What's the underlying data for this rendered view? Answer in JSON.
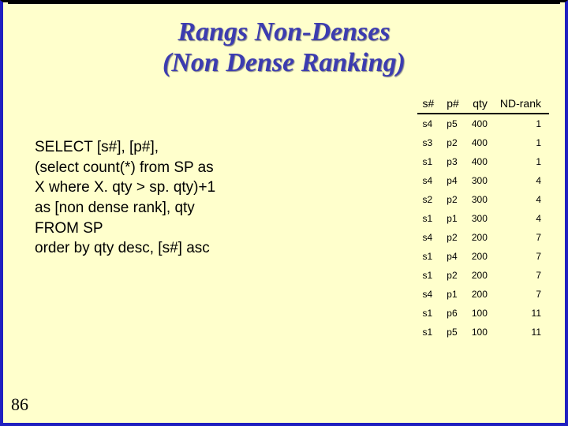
{
  "title_line1": "Rangs Non-Denses",
  "title_line2": "(Non Dense Ranking)",
  "sql": {
    "l1": "SELECT  [s#], [p#],",
    "l2": "(select count(*) from SP as",
    "l3": "X where X. qty > sp. qty)+1",
    "l4": "as [non dense rank], qty",
    "l5": "FROM SP",
    "l6": "order by qty desc, [s#] asc"
  },
  "table": {
    "headers": {
      "c1": "s#",
      "c2": "p#",
      "c3": "qty",
      "c4": "ND-rank"
    },
    "rows": [
      {
        "c1": "s4",
        "c2": "p5",
        "c3": "400",
        "c4": "1"
      },
      {
        "c1": "s3",
        "c2": "p2",
        "c3": "400",
        "c4": "1"
      },
      {
        "c1": "s1",
        "c2": "p3",
        "c3": "400",
        "c4": "1"
      },
      {
        "c1": "s4",
        "c2": "p4",
        "c3": "300",
        "c4": "4"
      },
      {
        "c1": "s2",
        "c2": "p2",
        "c3": "300",
        "c4": "4"
      },
      {
        "c1": "s1",
        "c2": "p1",
        "c3": "300",
        "c4": "4"
      },
      {
        "c1": "s4",
        "c2": "p2",
        "c3": "200",
        "c4": "7"
      },
      {
        "c1": "s1",
        "c2": "p4",
        "c3": "200",
        "c4": "7"
      },
      {
        "c1": "s1",
        "c2": "p2",
        "c3": "200",
        "c4": "7"
      },
      {
        "c1": "s4",
        "c2": "p1",
        "c3": "200",
        "c4": "7"
      },
      {
        "c1": "s1",
        "c2": "p6",
        "c3": "100",
        "c4": "11"
      },
      {
        "c1": "s1",
        "c2": "p5",
        "c3": "100",
        "c4": "11"
      }
    ]
  },
  "page_number": "86",
  "colors": {
    "background": "#ffffcc",
    "border": "#2020c0",
    "title": "#3c3cb0"
  }
}
